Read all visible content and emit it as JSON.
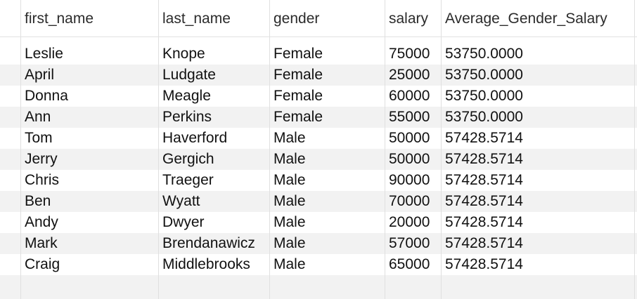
{
  "columns": [
    "first_name",
    "last_name",
    "gender",
    "salary",
    "Average_Gender_Salary"
  ],
  "rows": [
    [
      "Leslie",
      "Knope",
      "Female",
      "75000",
      "53750.0000"
    ],
    [
      "April",
      "Ludgate",
      "Female",
      "25000",
      "53750.0000"
    ],
    [
      "Donna",
      "Meagle",
      "Female",
      "60000",
      "53750.0000"
    ],
    [
      "Ann",
      "Perkins",
      "Female",
      "55000",
      "53750.0000"
    ],
    [
      "Tom",
      "Haverford",
      "Male",
      "50000",
      "57428.5714"
    ],
    [
      "Jerry",
      "Gergich",
      "Male",
      "50000",
      "57428.5714"
    ],
    [
      "Chris",
      "Traeger",
      "Male",
      "90000",
      "57428.5714"
    ],
    [
      "Ben",
      "Wyatt",
      "Male",
      "70000",
      "57428.5714"
    ],
    [
      "Andy",
      "Dwyer",
      "Male",
      "20000",
      "57428.5714"
    ],
    [
      "Mark",
      "Brendanawicz",
      "Male",
      "57000",
      "57428.5714"
    ],
    [
      "Craig",
      "Middlebrooks",
      "Male",
      "65000",
      "57428.5714"
    ]
  ]
}
